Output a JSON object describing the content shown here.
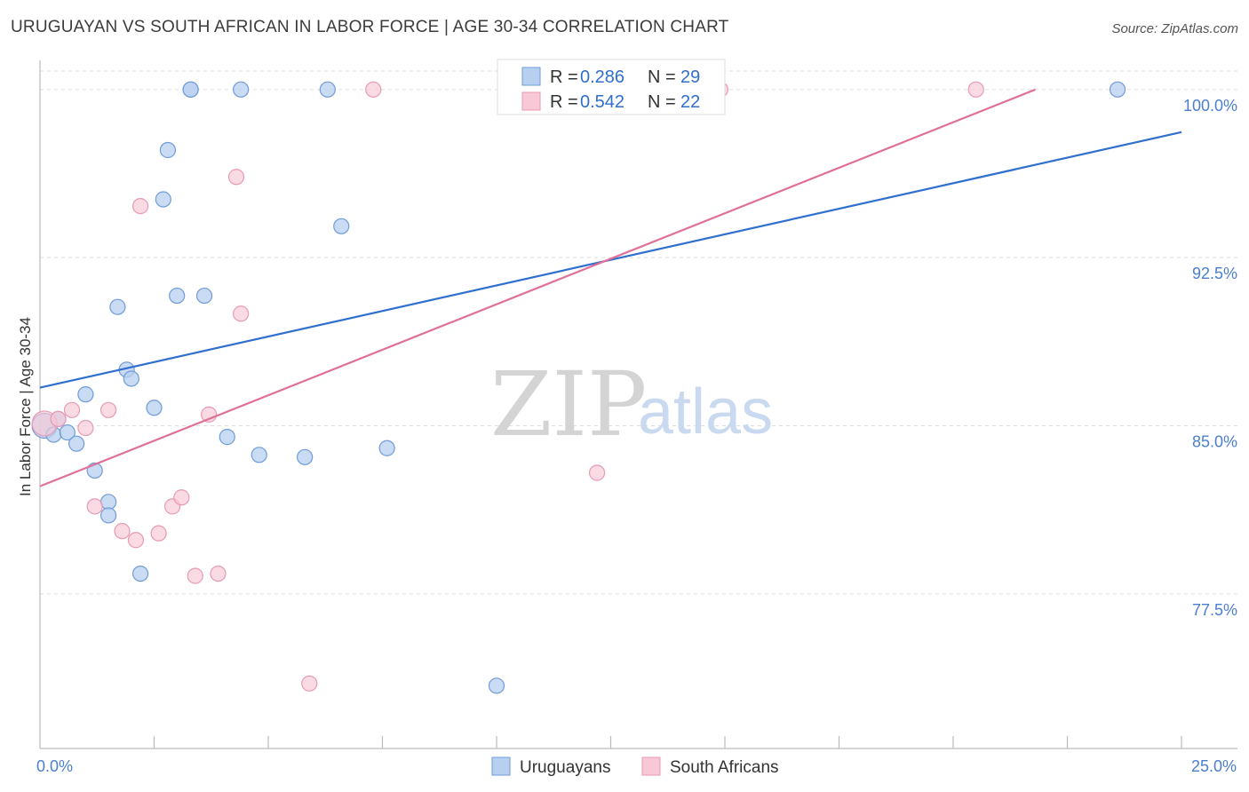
{
  "header": {
    "title": "URUGUAYAN VS SOUTH AFRICAN IN LABOR FORCE | AGE 30-34 CORRELATION CHART",
    "source": "Source: ZipAtlas.com"
  },
  "watermark": {
    "zip": "ZIP",
    "atlas": "atlas"
  },
  "colors": {
    "blue_fill": "#b8d0f0",
    "blue_stroke": "#6f9bd8",
    "blue_line": "#2f6fcf",
    "pink_fill": "#f8c8d6",
    "pink_stroke": "#e79ab3",
    "pink_line": "#e07098",
    "grid": "#dddddd",
    "axis": "#bbbbbb"
  },
  "legend": {
    "rows": [
      {
        "r_label": "R =",
        "r_value": "0.286",
        "n_label": "N =",
        "n_value": "29",
        "color": "#b8d0f0",
        "stroke": "#6f9bd8"
      },
      {
        "r_label": "R =",
        "r_value": "0.542",
        "n_label": "N =",
        "n_value": "22",
        "color": "#f8c8d6",
        "stroke": "#e79ab3"
      }
    ]
  },
  "bottom_legend": [
    {
      "label": "Uruguayans",
      "color": "#b8d0f0",
      "stroke": "#6f9bd8"
    },
    {
      "label": "South Africans",
      "color": "#f8c8d6",
      "stroke": "#e79ab3"
    }
  ],
  "chart_data": {
    "type": "scatter",
    "title": "URUGUAYAN VS SOUTH AFRICAN IN LABOR FORCE | AGE 30-34 CORRELATION CHART",
    "xlabel": "",
    "ylabel": "In Labor Force | Age 30-34",
    "xlim": [
      0,
      25
    ],
    "ylim": [
      70.6,
      101.3
    ],
    "x_tick_labels": [
      {
        "value": 0,
        "label": "0.0%"
      },
      {
        "value": 25,
        "label": "25.0%"
      }
    ],
    "x_minor_ticks": [
      2.5,
      5,
      7.5,
      10,
      12.5,
      15,
      17.5,
      20,
      22.5,
      25
    ],
    "y_ticks": [
      {
        "value": 77.5,
        "label": "77.5%"
      },
      {
        "value": 85.0,
        "label": "85.0%"
      },
      {
        "value": 92.5,
        "label": "92.5%"
      },
      {
        "value": 100.0,
        "label": "100.0%"
      }
    ],
    "grid": true,
    "series": [
      {
        "name": "Uruguayans",
        "color": "#b8d0f0",
        "points": [
          [
            0.1,
            85.0
          ],
          [
            0.3,
            84.6
          ],
          [
            0.4,
            85.3
          ],
          [
            0.6,
            84.7
          ],
          [
            0.8,
            84.2
          ],
          [
            1.0,
            86.4
          ],
          [
            1.2,
            83.0
          ],
          [
            1.5,
            81.6
          ],
          [
            1.5,
            81.0
          ],
          [
            1.7,
            90.3
          ],
          [
            1.9,
            87.5
          ],
          [
            2.0,
            87.1
          ],
          [
            2.2,
            78.4
          ],
          [
            2.5,
            85.8
          ],
          [
            2.7,
            95.1
          ],
          [
            2.8,
            97.3
          ],
          [
            3.0,
            90.8
          ],
          [
            3.3,
            100.0
          ],
          [
            3.3,
            100.0
          ],
          [
            3.6,
            90.8
          ],
          [
            4.1,
            84.5
          ],
          [
            4.4,
            100.0
          ],
          [
            4.8,
            83.7
          ],
          [
            5.8,
            83.6
          ],
          [
            6.3,
            100.0
          ],
          [
            6.6,
            93.9
          ],
          [
            7.6,
            84.0
          ],
          [
            10.0,
            73.4
          ],
          [
            23.6,
            100.0
          ]
        ],
        "trend": {
          "x": [
            0,
            25
          ],
          "y": [
            86.7,
            98.1
          ]
        }
      },
      {
        "name": "South Africans",
        "color": "#f8c8d6",
        "points": [
          [
            0.1,
            85.1
          ],
          [
            0.4,
            85.3
          ],
          [
            0.7,
            85.7
          ],
          [
            1.0,
            84.9
          ],
          [
            1.2,
            81.4
          ],
          [
            1.5,
            85.7
          ],
          [
            1.8,
            80.3
          ],
          [
            2.1,
            79.9
          ],
          [
            2.2,
            94.8
          ],
          [
            2.6,
            80.2
          ],
          [
            2.9,
            81.4
          ],
          [
            3.1,
            81.8
          ],
          [
            3.4,
            78.3
          ],
          [
            3.7,
            85.5
          ],
          [
            3.9,
            78.4
          ],
          [
            4.3,
            96.1
          ],
          [
            4.4,
            90.0
          ],
          [
            5.9,
            73.5
          ],
          [
            7.3,
            100.0
          ],
          [
            12.2,
            82.9
          ],
          [
            14.9,
            100.0
          ],
          [
            20.5,
            100.0
          ]
        ],
        "trend": {
          "x": [
            0,
            21.8
          ],
          "y": [
            82.3,
            100.0
          ]
        }
      }
    ]
  }
}
